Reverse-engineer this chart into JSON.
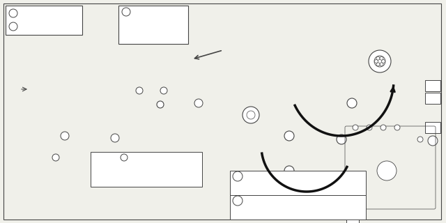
{
  "bg_color": "#f0f0ea",
  "lc": "#444444",
  "tc": "#222222",
  "fig_width": 6.4,
  "fig_height": 3.2,
  "dpi": 100
}
